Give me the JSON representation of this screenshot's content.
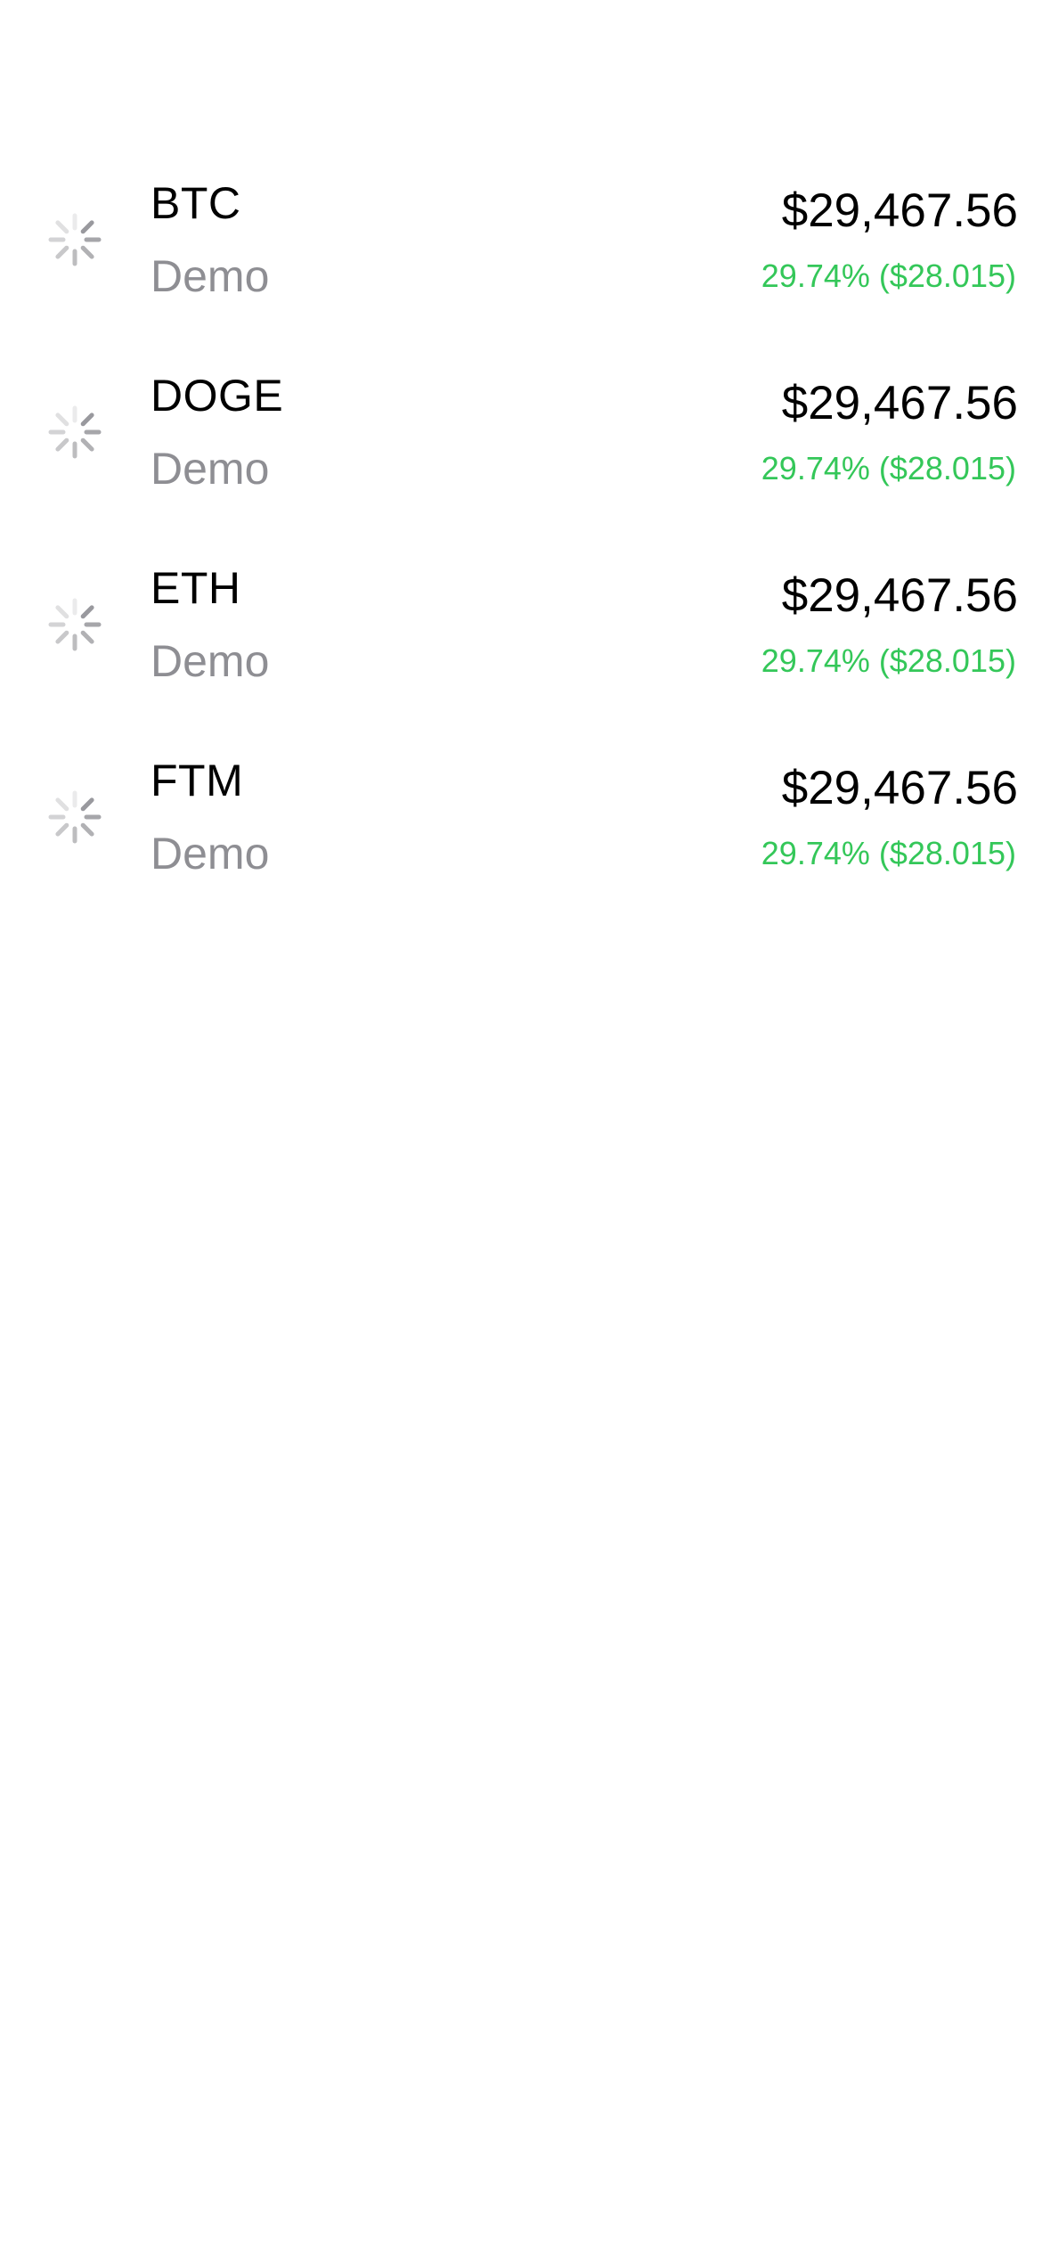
{
  "colors": {
    "positive": "#34c759",
    "secondary_text": "#8e8e93",
    "spinner": "#8e8e93"
  },
  "assets": [
    {
      "symbol": "BTC",
      "subtitle": "Demo",
      "price": "$29,467.56",
      "change": "29.74% ($28.015)",
      "icon": "loading-spinner-icon"
    },
    {
      "symbol": "DOGE",
      "subtitle": "Demo",
      "price": "$29,467.56",
      "change": "29.74% ($28.015)",
      "icon": "loading-spinner-icon"
    },
    {
      "symbol": "ETH",
      "subtitle": "Demo",
      "price": "$29,467.56",
      "change": "29.74% ($28.015)",
      "icon": "loading-spinner-icon"
    },
    {
      "symbol": "FTM",
      "subtitle": "Demo",
      "price": "$29,467.56",
      "change": "29.74% ($28.015)",
      "icon": "loading-spinner-icon"
    }
  ]
}
